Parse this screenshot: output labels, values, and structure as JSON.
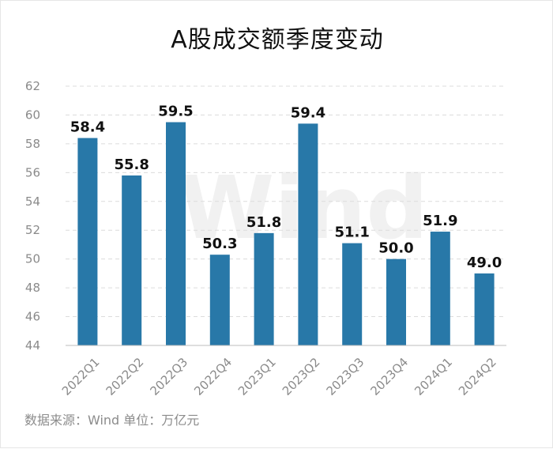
{
  "title": "A股成交额季度变动",
  "footer": {
    "source": "数据来源：Wind  单位：万亿元"
  },
  "watermark": "Wind",
  "colors": {
    "bar": "#2878a8",
    "grid": "#dcdcdc",
    "axis": "#bdbdbd"
  },
  "chart_data": {
    "type": "bar",
    "title": "A股成交额季度变动",
    "xlabel": "",
    "ylabel": "",
    "categories": [
      "2022Q1",
      "2022Q2",
      "2022Q3",
      "2022Q4",
      "2023Q1",
      "2023Q2",
      "2023Q3",
      "2023Q4",
      "2024Q1",
      "2024Q2"
    ],
    "values": [
      58.4,
      55.8,
      59.5,
      50.3,
      51.8,
      59.4,
      51.1,
      50.0,
      51.9,
      49.0
    ],
    "data_labels": [
      "58.4",
      "55.8",
      "59.5",
      "50.3",
      "51.8",
      "59.4",
      "51.1",
      "50.0",
      "51.9",
      "49.0"
    ],
    "ylim": [
      44,
      62
    ],
    "yticks": [
      44,
      46,
      48,
      50,
      52,
      54,
      56,
      58,
      60,
      62
    ],
    "grid": true,
    "legend": "none"
  }
}
